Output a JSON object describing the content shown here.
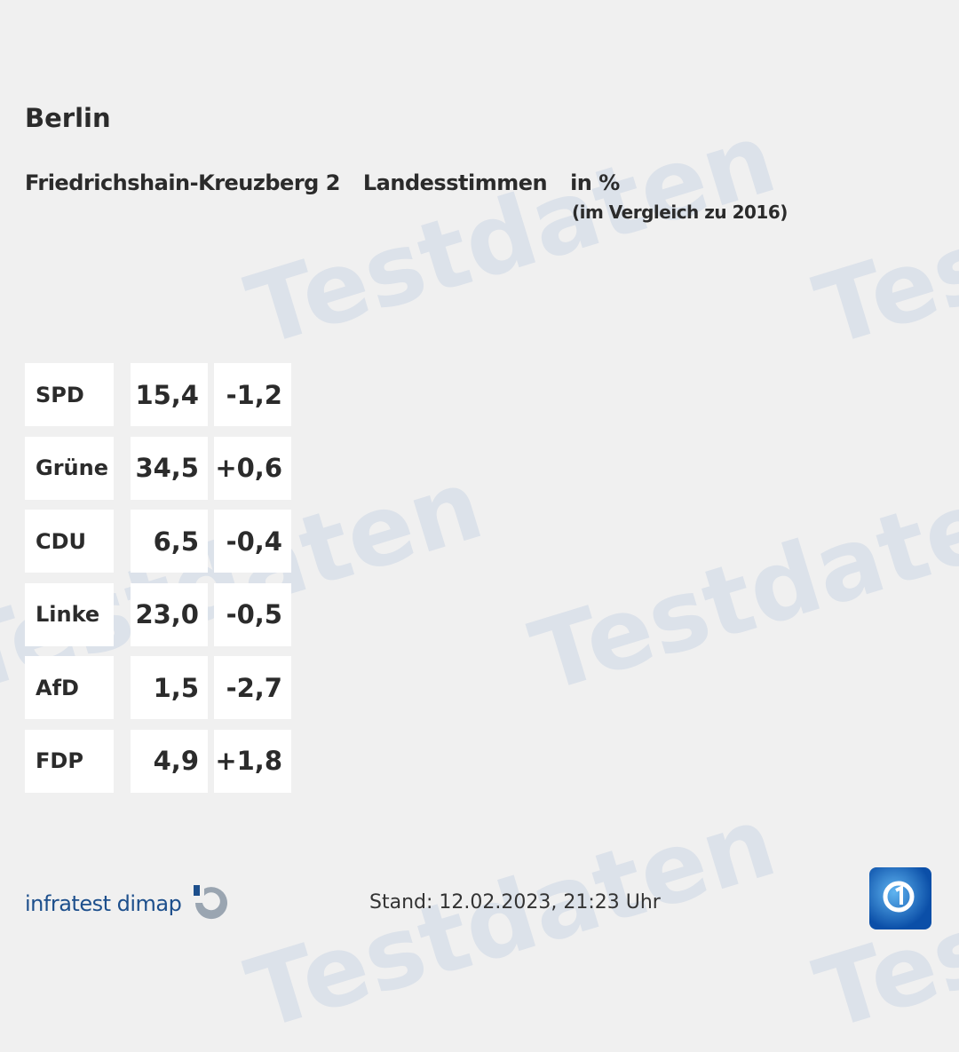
{
  "header": {
    "title": "Berlin",
    "district": "Friedrichshain-Kreuzberg 2",
    "vote_type": "Landesstimmen",
    "unit": "in %",
    "comparison": "(im Vergleich zu 2016)"
  },
  "results": [
    {
      "party": "SPD",
      "value": "15,4",
      "diff": "-1,2"
    },
    {
      "party": "Grüne",
      "value": "34,5",
      "diff": "+0,6"
    },
    {
      "party": "CDU",
      "value": "6,5",
      "diff": "-0,4"
    },
    {
      "party": "Linke",
      "value": "23,0",
      "diff": "-0,5"
    },
    {
      "party": "AfD",
      "value": "1,5",
      "diff": "-2,7"
    },
    {
      "party": "FDP",
      "value": "4,9",
      "diff": "+1,8"
    }
  ],
  "footer": {
    "brand": "infratest dimap",
    "stand": "Stand: 12.02.2023, 21:23 Uhr"
  },
  "watermark": "Testdaten",
  "colors": {
    "background": "#f0f0f0",
    "brand": "#1d4f8c",
    "cell": "#ffffff"
  }
}
